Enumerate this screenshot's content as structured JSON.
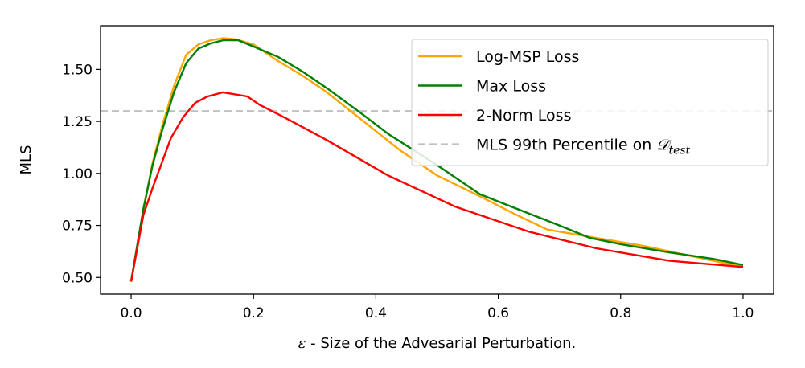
{
  "chart_data": {
    "type": "line",
    "xlabel_symbol": "ε",
    "xlabel": " - Size of the Advesarial Perturbation.",
    "ylabel": "MLS",
    "xlim": [
      -0.05,
      1.05
    ],
    "ylim": [
      0.42,
      1.71
    ],
    "xticks": [
      0.0,
      0.2,
      0.4,
      0.6,
      0.8,
      1.0
    ],
    "xtick_labels": [
      "0.0",
      "0.2",
      "0.4",
      "0.6",
      "0.8",
      "1.0"
    ],
    "yticks": [
      0.5,
      0.75,
      1.0,
      1.25,
      1.5
    ],
    "ytick_labels": [
      "0.50",
      "0.75",
      "1.00",
      "1.25",
      "1.50"
    ],
    "grid": false,
    "legend_position": "upper right",
    "series": [
      {
        "name": "Log-MSP Loss",
        "color": "#ffa500",
        "style": "solid",
        "x": [
          0.0,
          0.02,
          0.035,
          0.05,
          0.07,
          0.09,
          0.11,
          0.13,
          0.15,
          0.17,
          0.2,
          0.24,
          0.28,
          0.32,
          0.38,
          0.44,
          0.5,
          0.57,
          0.63,
          0.68,
          0.76,
          0.84,
          0.92,
          1.0
        ],
        "y": [
          0.48,
          0.82,
          1.05,
          1.22,
          1.42,
          1.57,
          1.62,
          1.64,
          1.65,
          1.645,
          1.62,
          1.54,
          1.47,
          1.39,
          1.25,
          1.11,
          0.99,
          0.89,
          0.8,
          0.73,
          0.69,
          0.65,
          0.6,
          0.55
        ]
      },
      {
        "name": "Max Loss",
        "color": "#008000",
        "style": "solid",
        "x": [
          0.0,
          0.02,
          0.035,
          0.05,
          0.07,
          0.09,
          0.11,
          0.13,
          0.15,
          0.175,
          0.2,
          0.24,
          0.28,
          0.32,
          0.38,
          0.42,
          0.5,
          0.57,
          0.63,
          0.7,
          0.75,
          0.8,
          0.88,
          0.95,
          1.0
        ],
        "y": [
          0.48,
          0.83,
          1.04,
          1.2,
          1.39,
          1.53,
          1.6,
          1.625,
          1.64,
          1.64,
          1.61,
          1.56,
          1.49,
          1.41,
          1.28,
          1.19,
          1.04,
          0.9,
          0.83,
          0.75,
          0.69,
          0.66,
          0.62,
          0.59,
          0.56
        ]
      },
      {
        "name": "2-Norm Loss",
        "color": "#ff0000",
        "style": "solid",
        "x": [
          0.0,
          0.02,
          0.035,
          0.05,
          0.065,
          0.085,
          0.105,
          0.125,
          0.15,
          0.17,
          0.19,
          0.21,
          0.25,
          0.32,
          0.42,
          0.53,
          0.65,
          0.76,
          0.88,
          1.0
        ],
        "y": [
          0.48,
          0.8,
          0.93,
          1.05,
          1.17,
          1.27,
          1.34,
          1.37,
          1.39,
          1.38,
          1.37,
          1.33,
          1.27,
          1.16,
          0.99,
          0.84,
          0.72,
          0.64,
          0.58,
          0.55
        ]
      },
      {
        "name": "MLS 99th Percentile on ",
        "name_math": "𝒟",
        "name_sub": "test",
        "color": "#c0c0c0",
        "style": "dashed",
        "x": [
          -0.05,
          1.05
        ],
        "y": [
          1.3,
          1.3
        ]
      }
    ]
  }
}
